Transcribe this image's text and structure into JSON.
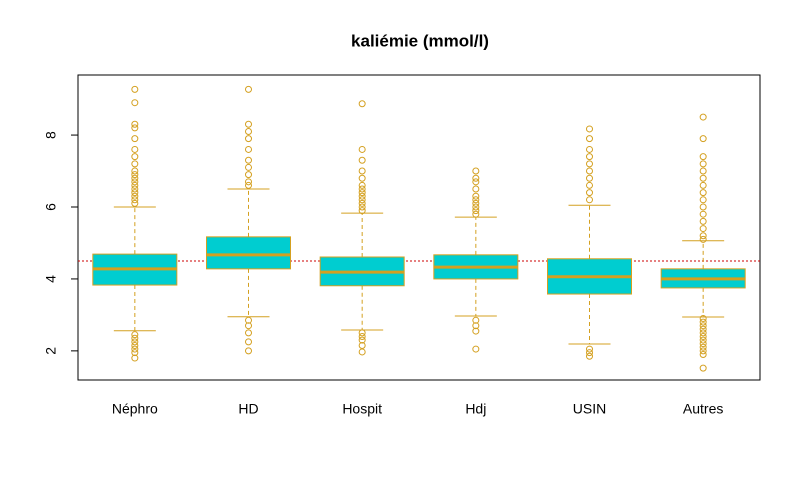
{
  "chart_data": {
    "type": "box",
    "title": "kaliémie (mmol/l)",
    "categories": [
      "Néphro",
      "HD",
      "Hospit",
      "Hdj",
      "USIN",
      "Autres"
    ],
    "boxes": [
      {
        "whisker_low": 2.56,
        "q1": 3.83,
        "median": 4.28,
        "q3": 4.69,
        "whisker_high": 6.0,
        "outliers": [
          6.1,
          6.2,
          6.3,
          6.4,
          6.5,
          6.6,
          6.7,
          6.8,
          6.9,
          7.0,
          7.2,
          7.4,
          7.6,
          7.9,
          8.2,
          8.3,
          8.9,
          9.27,
          2.45,
          2.35,
          2.25,
          2.15,
          2.05,
          1.95,
          1.8
        ]
      },
      {
        "whisker_low": 2.95,
        "q1": 4.28,
        "median": 4.67,
        "q3": 5.17,
        "whisker_high": 6.5,
        "outliers": [
          6.6,
          6.7,
          6.9,
          7.1,
          7.3,
          7.6,
          7.9,
          8.1,
          8.3,
          9.27,
          2.85,
          2.7,
          2.5,
          2.25,
          2.0
        ]
      },
      {
        "whisker_low": 2.58,
        "q1": 3.81,
        "median": 4.19,
        "q3": 4.61,
        "whisker_high": 5.83,
        "outliers": [
          5.9,
          6.0,
          6.1,
          6.2,
          6.3,
          6.4,
          6.5,
          6.6,
          6.8,
          7.0,
          7.3,
          7.6,
          8.87,
          2.5,
          2.4,
          2.3,
          2.15,
          1.97
        ]
      },
      {
        "whisker_low": 2.97,
        "q1": 4.0,
        "median": 4.33,
        "q3": 4.67,
        "whisker_high": 5.72,
        "outliers": [
          5.8,
          5.9,
          6.0,
          6.1,
          6.2,
          6.3,
          6.5,
          6.7,
          6.8,
          7.0,
          2.85,
          2.7,
          2.55,
          2.05
        ]
      },
      {
        "whisker_low": 2.19,
        "q1": 3.58,
        "median": 4.06,
        "q3": 4.56,
        "whisker_high": 6.05,
        "outliers": [
          6.2,
          6.4,
          6.6,
          6.8,
          7.0,
          7.2,
          7.4,
          7.6,
          7.9,
          8.17,
          2.05,
          1.95,
          1.85
        ]
      },
      {
        "whisker_low": 2.94,
        "q1": 3.75,
        "median": 4.0,
        "q3": 4.28,
        "whisker_high": 5.06,
        "outliers": [
          5.1,
          5.2,
          5.4,
          5.6,
          5.8,
          6.0,
          6.2,
          6.4,
          6.6,
          6.8,
          7.0,
          7.2,
          7.4,
          7.9,
          8.5,
          2.9,
          2.8,
          2.7,
          2.6,
          2.5,
          2.4,
          2.3,
          2.2,
          2.1,
          2.0,
          1.9,
          1.52
        ]
      }
    ],
    "ylim": [
      1.19,
      9.67
    ],
    "yticks": [
      2,
      4,
      6,
      8
    ],
    "reference_line": 4.5,
    "reference_color": "#cc0000",
    "box_color": "#00cdd0",
    "edge_color": "#d4a020"
  }
}
